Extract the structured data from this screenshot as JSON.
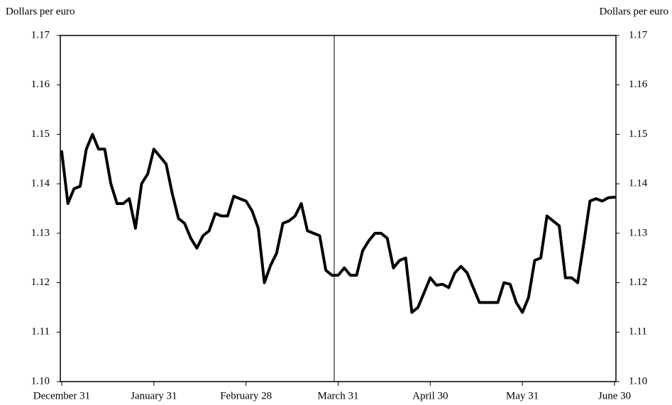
{
  "chart_data": {
    "type": "line",
    "y_label": "Dollars per euro",
    "y2_label": "Dollars per euro",
    "categories": [
      "December 31",
      null,
      null,
      null,
      null,
      null,
      null,
      null,
      null,
      null,
      null,
      null,
      null,
      null,
      null,
      "January 31",
      null,
      null,
      null,
      null,
      null,
      null,
      null,
      null,
      null,
      null,
      null,
      null,
      null,
      null,
      "February 28",
      null,
      null,
      null,
      null,
      null,
      null,
      null,
      null,
      null,
      null,
      null,
      null,
      null,
      null,
      "March 31",
      null,
      null,
      null,
      null,
      null,
      null,
      null,
      null,
      null,
      null,
      null,
      null,
      null,
      null,
      "April 30",
      null,
      null,
      null,
      null,
      null,
      null,
      null,
      null,
      null,
      null,
      null,
      null,
      null,
      null,
      "May 31",
      null,
      null,
      null,
      null,
      null,
      null,
      null,
      null,
      null,
      null,
      null,
      null,
      null,
      null,
      "June 30"
    ],
    "series": [
      {
        "color": "#000000",
        "values": [
          1.1465,
          1.136,
          1.139,
          1.1395,
          1.147,
          1.15,
          1.147,
          1.147,
          1.14,
          1.136,
          1.136,
          1.137,
          1.131,
          1.14,
          1.142,
          1.147,
          1.1455,
          1.144,
          1.138,
          1.133,
          1.132,
          1.129,
          1.127,
          1.1295,
          1.1305,
          1.134,
          1.1335,
          1.1335,
          1.1375,
          1.137,
          1.1365,
          1.1345,
          1.131,
          1.12,
          1.1235,
          1.126,
          1.132,
          1.1325,
          1.1335,
          1.136,
          1.1305,
          1.13,
          1.1295,
          1.1225,
          1.1215,
          1.1215,
          1.123,
          1.1215,
          1.1215,
          1.1265,
          1.1285,
          1.13,
          1.13,
          1.129,
          1.123,
          1.1245,
          1.125,
          1.114,
          1.115,
          1.118,
          1.121,
          1.1195,
          1.1197,
          1.119,
          1.122,
          1.1233,
          1.122,
          1.119,
          1.116,
          1.116,
          1.116,
          1.116,
          1.12,
          1.1197,
          1.116,
          1.114,
          1.117,
          1.1245,
          1.125,
          1.1335,
          1.1325,
          1.1315,
          1.121,
          1.121,
          1.12,
          1.128,
          1.1365,
          1.137,
          1.1365,
          1.1372,
          1.1373
        ]
      }
    ],
    "ylim": [
      1.1,
      1.17
    ],
    "yticks": [
      {
        "value": 1.1,
        "label": "1.10"
      },
      1.11,
      1.12,
      1.13,
      1.14,
      1.15,
      1.16,
      1.17
    ],
    "y2lim": [
      1.1,
      1.17
    ],
    "y2ticks": [
      {
        "value": 1.1,
        "label": "1.10"
      },
      1.11,
      1.12,
      1.13,
      1.14,
      1.15,
      1.16,
      1.17
    ]
  }
}
